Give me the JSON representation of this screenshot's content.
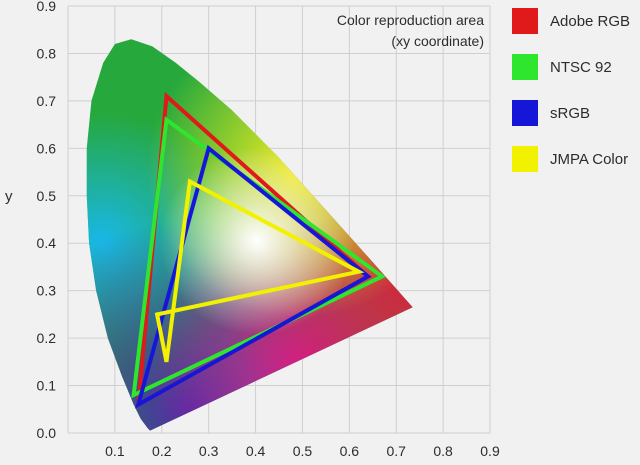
{
  "chart_data": {
    "type": "line",
    "title": "",
    "annotation": [
      "Color reproduction area",
      "(xy coordinate)"
    ],
    "xlabel": "",
    "ylabel": "y",
    "xlim": [
      0,
      0.9
    ],
    "ylim": [
      0,
      0.9
    ],
    "xticks": [
      "0.1",
      "0.2",
      "0.3",
      "0.4",
      "0.5",
      "0.6",
      "0.7",
      "0.8",
      "0.9"
    ],
    "yticks": [
      "0.0",
      "0.1",
      "0.2",
      "0.3",
      "0.4",
      "0.5",
      "0.6",
      "0.7",
      "0.8",
      "0.9"
    ],
    "grid": true,
    "legend_position": "right",
    "spectral_locus": [
      [
        0.175,
        0.005
      ],
      [
        0.17,
        0.01
      ],
      [
        0.155,
        0.03
      ],
      [
        0.14,
        0.06
      ],
      [
        0.115,
        0.12
      ],
      [
        0.085,
        0.2
      ],
      [
        0.06,
        0.3
      ],
      [
        0.045,
        0.4
      ],
      [
        0.04,
        0.5
      ],
      [
        0.04,
        0.6
      ],
      [
        0.05,
        0.7
      ],
      [
        0.075,
        0.78
      ],
      [
        0.1,
        0.82
      ],
      [
        0.135,
        0.83
      ],
      [
        0.18,
        0.815
      ],
      [
        0.23,
        0.78
      ],
      [
        0.28,
        0.74
      ],
      [
        0.35,
        0.68
      ],
      [
        0.45,
        0.58
      ],
      [
        0.55,
        0.47
      ],
      [
        0.65,
        0.36
      ],
      [
        0.735,
        0.265
      ]
    ],
    "series": [
      {
        "name": "Adobe RGB",
        "color": "#e0191b",
        "points": [
          [
            0.64,
            0.33
          ],
          [
            0.21,
            0.71
          ],
          [
            0.15,
            0.06
          ]
        ]
      },
      {
        "name": "NTSC 92",
        "color": "#2ee62e",
        "points": [
          [
            0.67,
            0.33
          ],
          [
            0.21,
            0.66
          ],
          [
            0.14,
            0.08
          ]
        ]
      },
      {
        "name": "sRGB",
        "color": "#1616d8",
        "points": [
          [
            0.64,
            0.33
          ],
          [
            0.3,
            0.6
          ],
          [
            0.15,
            0.06
          ]
        ]
      },
      {
        "name": "JMPA Color",
        "color": "#f2f200",
        "points": [
          [
            0.62,
            0.34
          ],
          [
            0.26,
            0.53
          ],
          [
            0.21,
            0.15
          ],
          [
            0.19,
            0.25
          ]
        ]
      }
    ]
  }
}
